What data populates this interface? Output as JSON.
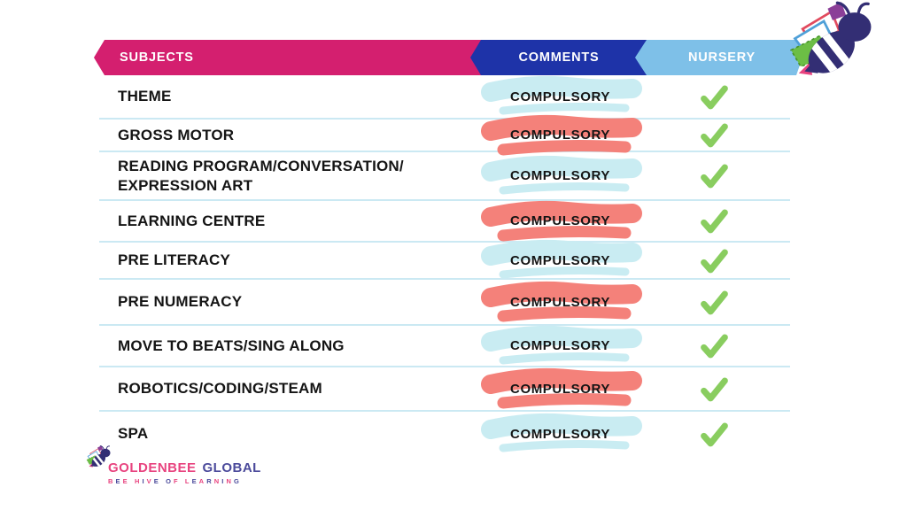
{
  "header": {
    "columns": [
      {
        "label": "SUBJECTS",
        "color": "#D41F6F"
      },
      {
        "label": "COMMENTS",
        "color": "#1E33A8"
      },
      {
        "label": "NURSERY",
        "color": "#7EC0E8"
      }
    ]
  },
  "rows": [
    {
      "subject": "THEME",
      "comment": "COMPULSORY",
      "highlight": "cyan",
      "nursery_check": true
    },
    {
      "subject": "GROSS MOTOR",
      "comment": "COMPULSORY",
      "highlight": "salmon",
      "nursery_check": true
    },
    {
      "subject": "READING PROGRAM/CONVERSATION/\nEXPRESSION ART",
      "comment": "COMPULSORY",
      "highlight": "cyan",
      "nursery_check": true
    },
    {
      "subject": "LEARNING CENTRE",
      "comment": "COMPULSORY",
      "highlight": "salmon",
      "nursery_check": true
    },
    {
      "subject": "PRE LITERACY",
      "comment": "COMPULSORY",
      "highlight": "cyan",
      "nursery_check": true
    },
    {
      "subject": "PRE NUMERACY",
      "comment": "COMPULSORY",
      "highlight": "salmon",
      "nursery_check": true
    },
    {
      "subject": "MOVE TO BEATS/SING ALONG",
      "comment": "COMPULSORY",
      "highlight": "cyan",
      "nursery_check": true
    },
    {
      "subject": "ROBOTICS/CODING/STEAM",
      "comment": "COMPULSORY",
      "highlight": "salmon",
      "nursery_check": true
    },
    {
      "subject": "SPA",
      "comment": "COMPULSORY",
      "highlight": "cyan",
      "nursery_check": true
    }
  ],
  "brand": {
    "primary": "GOLDENBEE",
    "secondary": "GLOBAL",
    "tagline": "BEE HIVE OF LEARNING"
  },
  "icons": {
    "check": "checkmark-icon",
    "bee": "bee-logo"
  },
  "colors": {
    "banner_pink": "#D41F6F",
    "banner_blue": "#1E33A8",
    "banner_light_blue": "#7EC0E8",
    "divider": "#CBE9F3",
    "highlight_cyan": "#C9ECF2",
    "highlight_salmon": "#F4817A",
    "check_green": "#89CD5F",
    "brand_pink": "#E8437F",
    "brand_navy": "#4B4A9B",
    "bee_navy": "#332E74"
  }
}
